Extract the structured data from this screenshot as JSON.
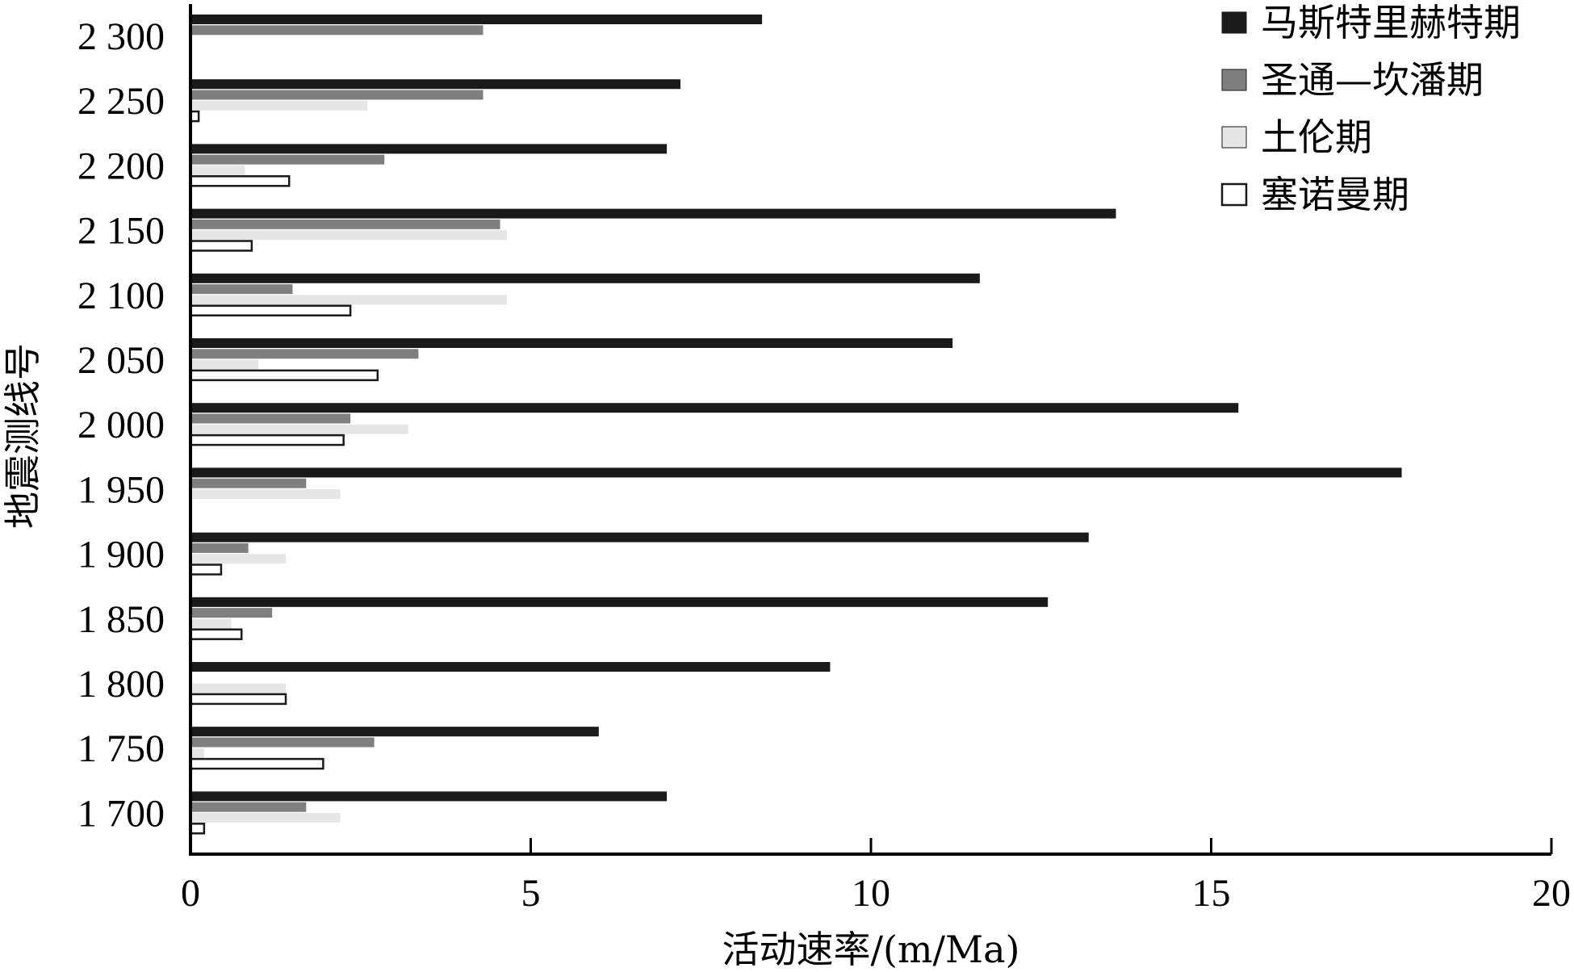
{
  "chart_data": {
    "type": "bar",
    "orientation": "horizontal",
    "xlabel": "活动速率/(m/Ma)",
    "ylabel": "地震测线号",
    "xlim": [
      0,
      20
    ],
    "x_ticks": [
      "0",
      "5",
      "10",
      "15",
      "20"
    ],
    "grid": false,
    "legend_position": "top-right",
    "categories": [
      "2 300",
      "2 250",
      "2 200",
      "2 150",
      "2 100",
      "2 050",
      "2 000",
      "1 950",
      "1 900",
      "1 850",
      "1 800",
      "1 750",
      "1 700"
    ],
    "series": [
      {
        "name": "马斯特里赫特期",
        "color": "#1a1a1a",
        "values": [
          8.4,
          7.2,
          7.0,
          13.6,
          11.6,
          11.2,
          15.4,
          17.8,
          13.2,
          12.6,
          9.4,
          6.0,
          7.0
        ]
      },
      {
        "name": "圣通—坎潘期",
        "color": "#7f7f7f",
        "values": [
          4.3,
          4.3,
          2.85,
          4.55,
          1.5,
          3.35,
          2.35,
          1.7,
          0.85,
          1.2,
          0,
          2.7,
          1.7
        ]
      },
      {
        "name": "土伦期",
        "color": "#e6e6e6",
        "values": [
          0,
          2.6,
          0.8,
          4.65,
          4.65,
          1.0,
          3.2,
          2.2,
          1.4,
          0.6,
          1.4,
          0.2,
          2.2
        ]
      },
      {
        "name": "塞诺曼期",
        "color": "#ffffff",
        "values": [
          0,
          0.12,
          1.45,
          0.9,
          2.35,
          2.75,
          2.25,
          0,
          0.45,
          0.75,
          1.4,
          1.95,
          0.2
        ]
      }
    ]
  }
}
